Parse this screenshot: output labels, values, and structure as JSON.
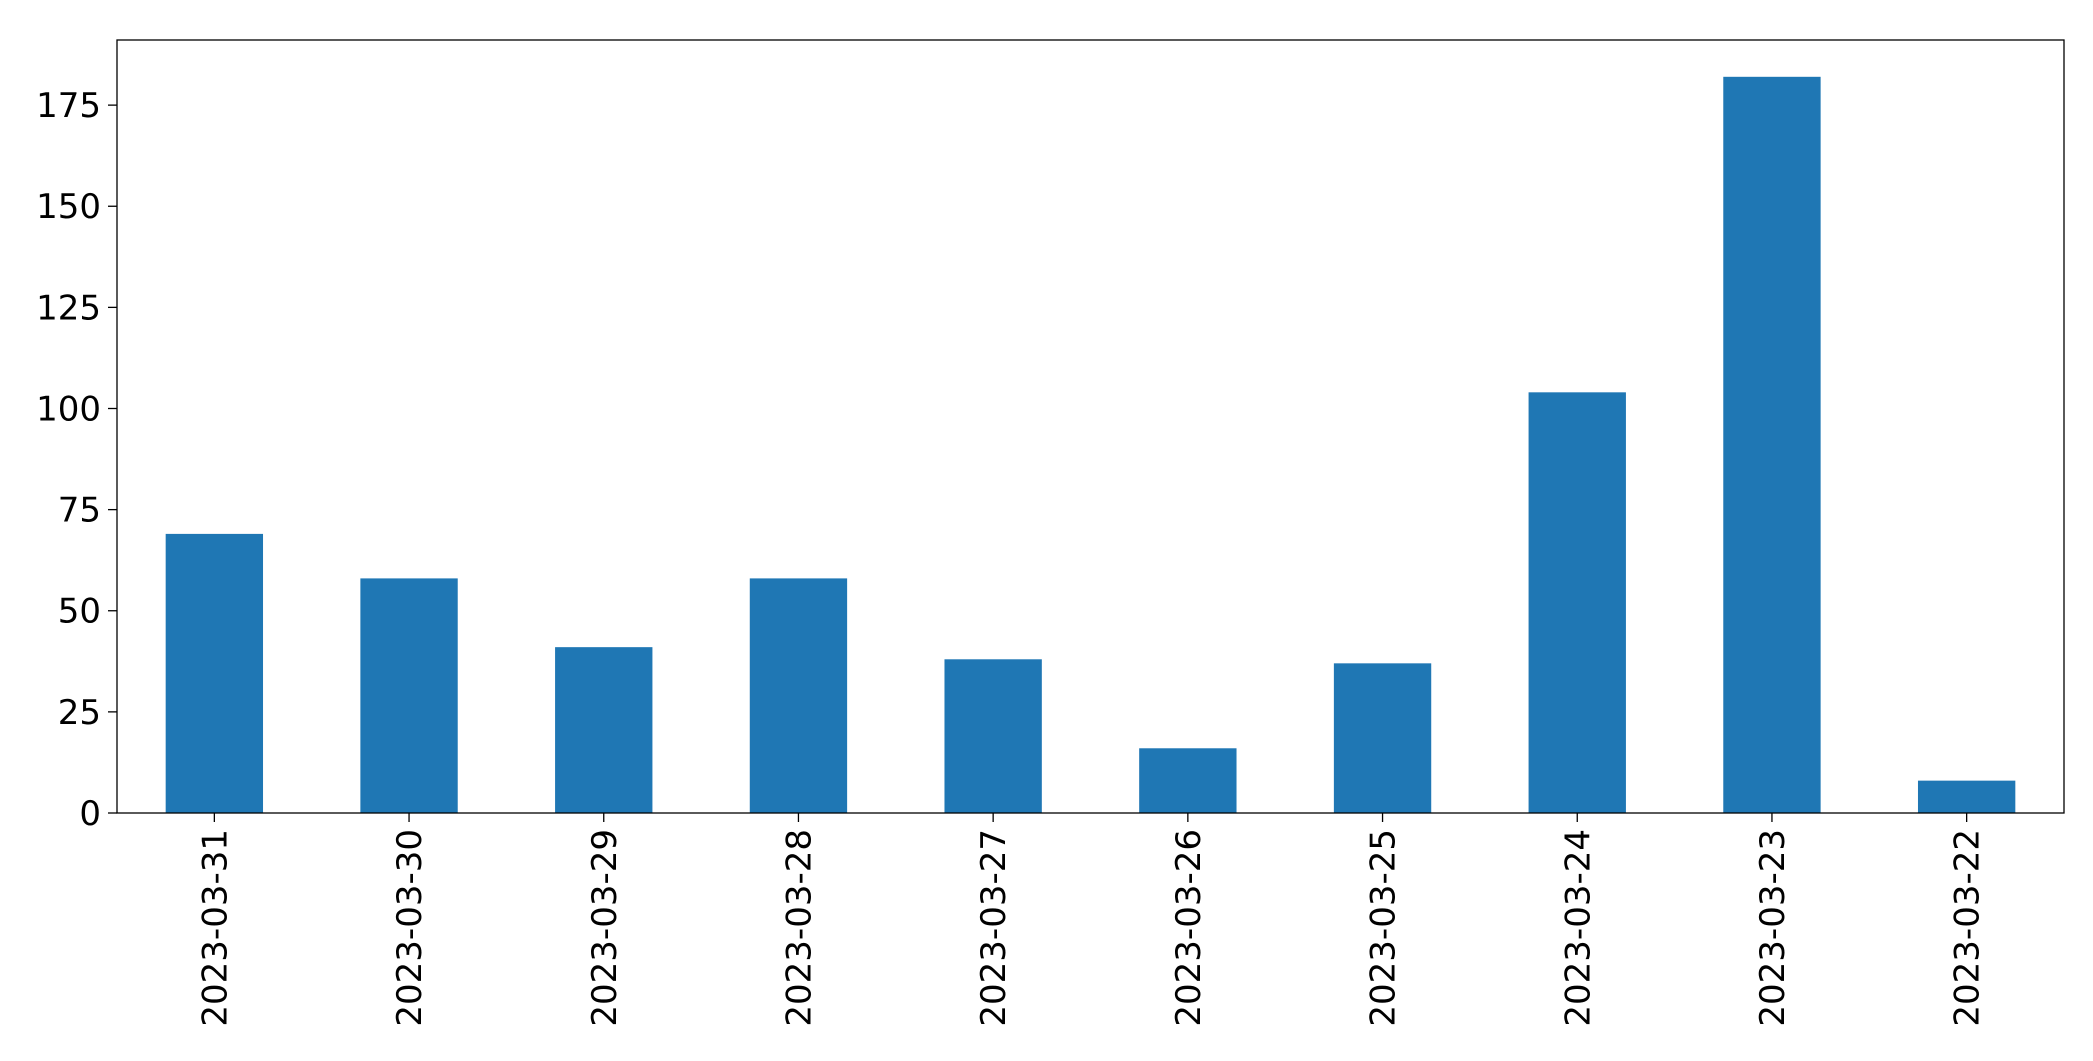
{
  "chart_data": {
    "type": "bar",
    "categories": [
      "2023-03-31",
      "2023-03-30",
      "2023-03-29",
      "2023-03-28",
      "2023-03-27",
      "2023-03-26",
      "2023-03-25",
      "2023-03-24",
      "2023-03-23",
      "2023-03-22"
    ],
    "values": [
      69,
      58,
      41,
      58,
      38,
      16,
      37,
      104,
      182,
      8
    ],
    "color": "#1f77b4",
    "ylim": [
      0,
      191.1
    ],
    "yticks": [
      0,
      25,
      50,
      75,
      100,
      125,
      150,
      175
    ],
    "grid": false
  }
}
